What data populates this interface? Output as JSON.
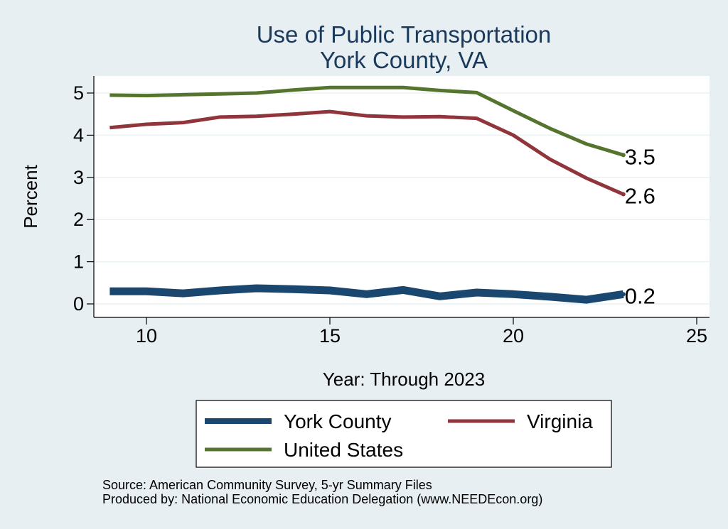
{
  "chart_data": {
    "type": "line",
    "title": [
      "Use of Public Transportation",
      "York County, VA"
    ],
    "xlabel": "Year: Through 2023",
    "ylabel": "Percent",
    "xlim": [
      9,
      25
    ],
    "ylim": [
      0,
      5
    ],
    "xticks": [
      10,
      15,
      20,
      25
    ],
    "yticks": [
      0,
      1,
      2,
      3,
      4,
      5
    ],
    "grid": true,
    "legend_position": "bottom",
    "x": [
      9,
      10,
      11,
      12,
      13,
      14,
      15,
      16,
      17,
      18,
      19,
      20,
      21,
      22,
      23
    ],
    "series": [
      {
        "name": "York County",
        "color": "#1a476f",
        "values": [
          0.3,
          0.3,
          0.25,
          0.32,
          0.37,
          0.35,
          0.32,
          0.23,
          0.33,
          0.18,
          0.27,
          0.23,
          0.17,
          0.1,
          0.23
        ],
        "end_label": "0.2"
      },
      {
        "name": "Virginia",
        "color": "#90353b",
        "values": [
          4.18,
          4.26,
          4.3,
          4.43,
          4.45,
          4.5,
          4.56,
          4.46,
          4.43,
          4.44,
          4.4,
          4.0,
          3.43,
          2.98,
          2.6
        ],
        "end_label": "2.6"
      },
      {
        "name": "United States",
        "color": "#55752f",
        "values": [
          4.95,
          4.94,
          4.96,
          4.98,
          5.0,
          5.07,
          5.13,
          5.13,
          5.13,
          5.06,
          5.01,
          4.58,
          4.16,
          3.79,
          3.53
        ],
        "end_label": "3.5"
      }
    ],
    "notes": [
      "Source: American Community Survey, 5-yr Summary Files",
      "Produced by: National Economic Education Delegation (www.NEEDEcon.org)"
    ]
  }
}
